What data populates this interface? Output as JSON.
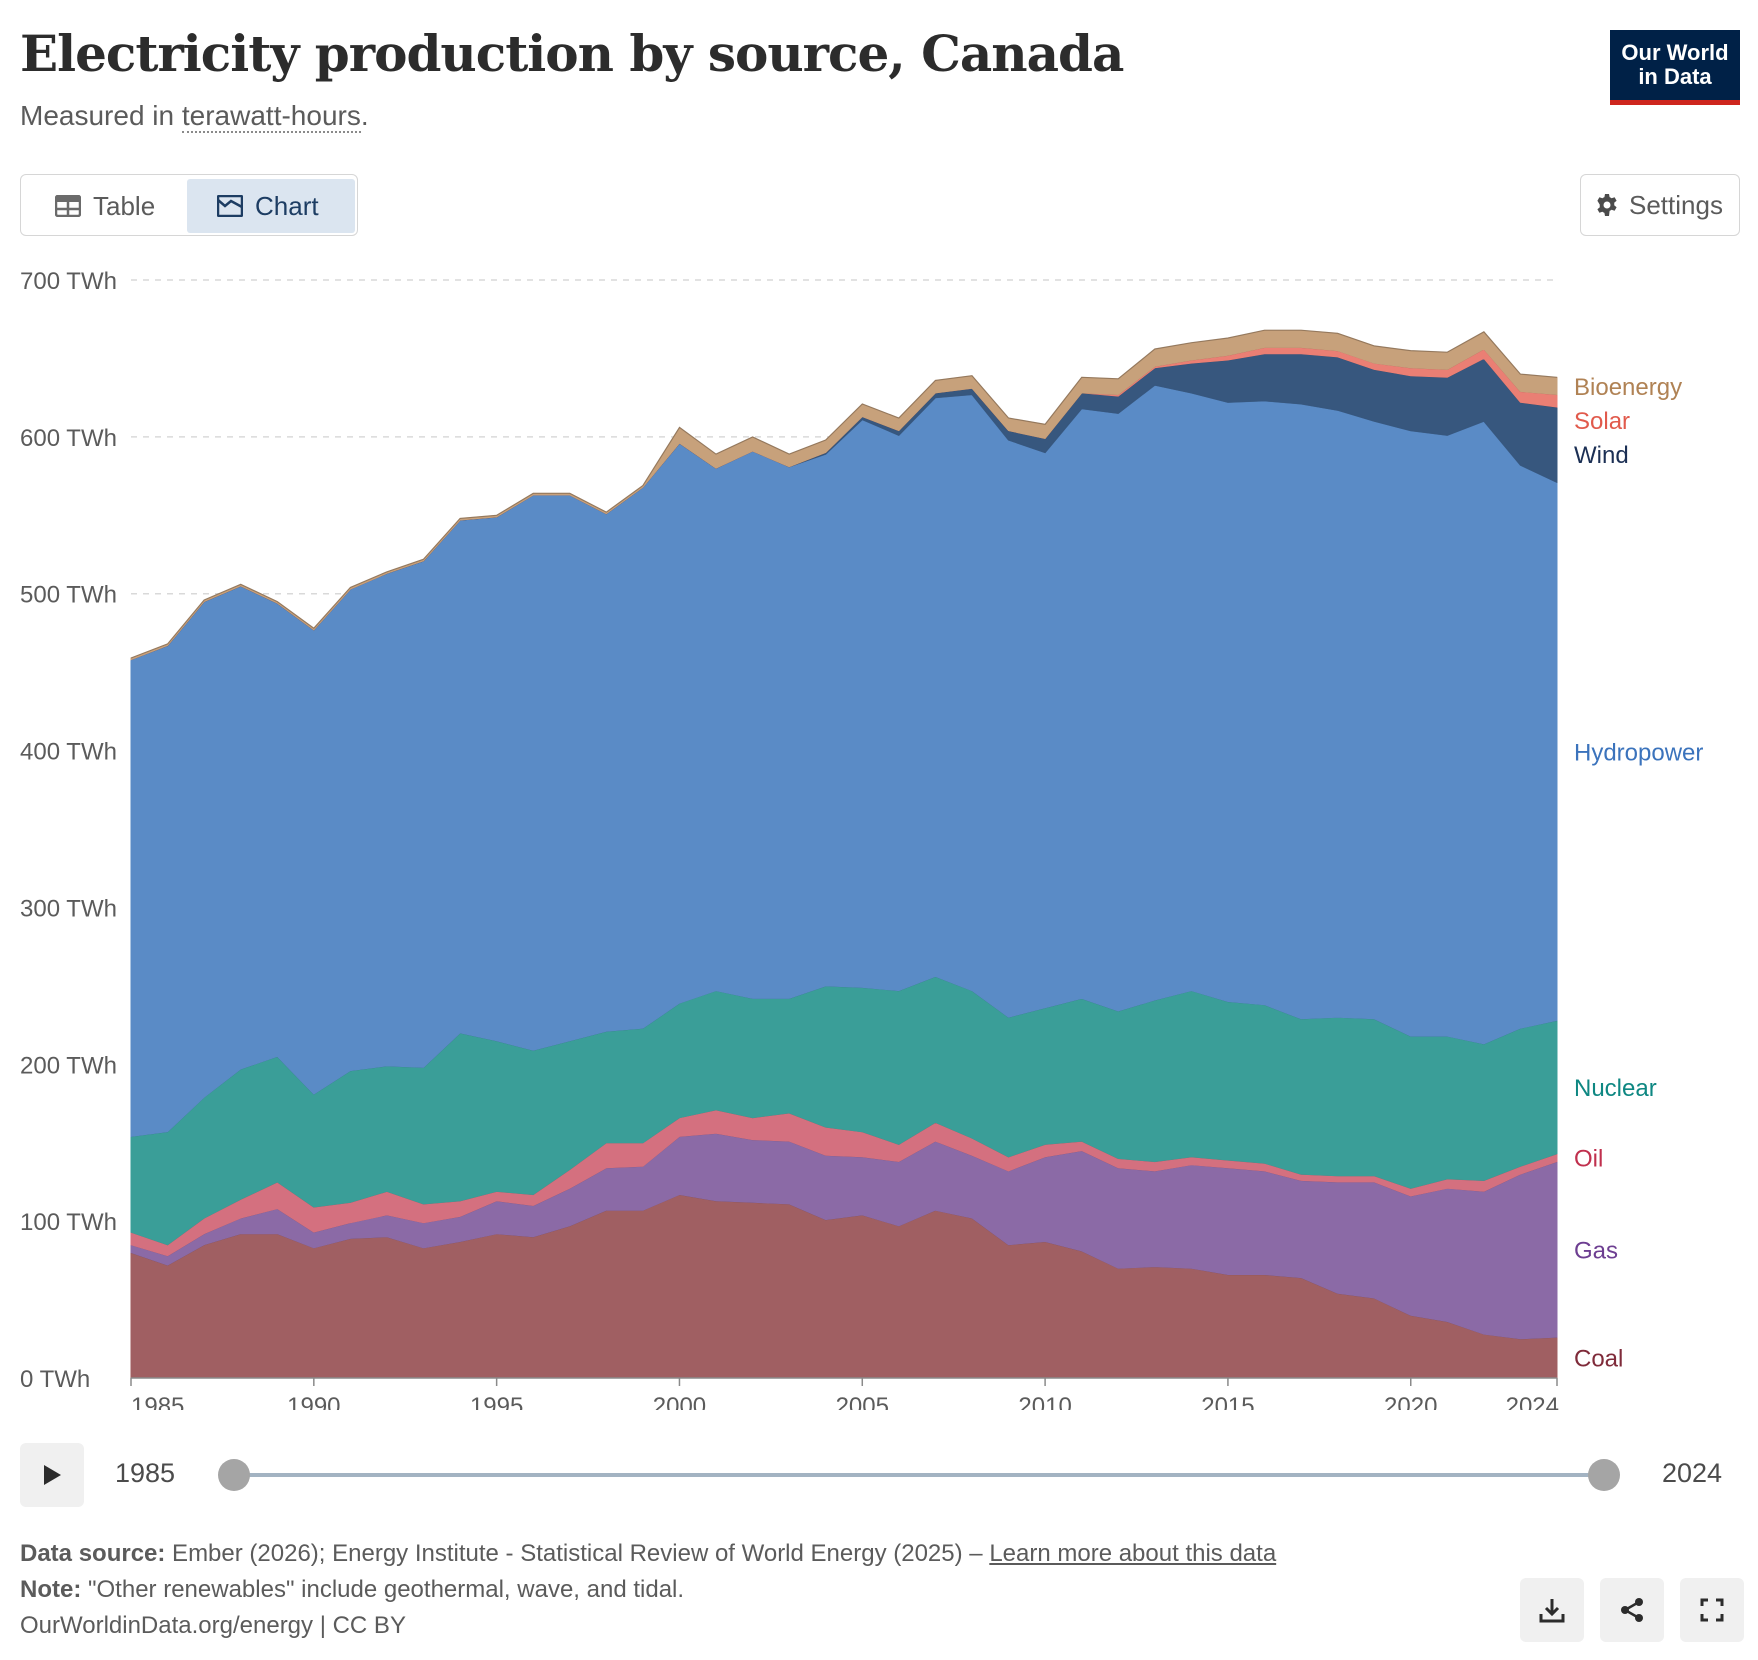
{
  "header": {
    "title": "Electricity production by source, Canada",
    "subtitle_prefix": "Measured in ",
    "subtitle_unit": "terawatt-hours",
    "subtitle_suffix": ".",
    "logo_line1": "Our World",
    "logo_line2": "in Data"
  },
  "tabs": [
    {
      "label": "Table",
      "icon": "table-icon",
      "active": false
    },
    {
      "label": "Chart",
      "icon": "chart-icon",
      "active": true
    }
  ],
  "settings_label": "Settings",
  "timeline": {
    "start": "1985",
    "end": "2024"
  },
  "footer": {
    "source_label": "Data source:",
    "source_text": " Ember (2026); Energy Institute - Statistical Review of World Energy (2025) – ",
    "source_link": "Learn more about this data",
    "note_label": "Note:",
    "note_text": " \"Other renewables\" include geothermal, wave, and tidal.",
    "credit": "OurWorldinData.org/energy | CC BY"
  },
  "colors": {
    "Coal": "#a05f62",
    "Gas": "#8b6aa6",
    "Oil": "#d4707f",
    "Nuclear": "#3a9e98",
    "Hydropower": "#5a8bc6",
    "Wind": "#37577e",
    "Solar": "#ea7f74",
    "Bioenergy": "#c7a17b"
  },
  "label_colors": {
    "Coal": "#7f2b3a",
    "Gas": "#6d3e91",
    "Oil": "#c0304e",
    "Nuclear": "#0e8782",
    "Hydropower": "#3b73bc",
    "Wind": "#1b2f54",
    "Solar": "#e15a4c",
    "Bioenergy": "#b08254"
  },
  "chart_data": {
    "type": "area",
    "stacked": true,
    "y_unit": "TWh",
    "ylim": [
      0,
      700
    ],
    "y_ticks": [
      "0 TWh",
      "100 TWh",
      "200 TWh",
      "300 TWh",
      "400 TWh",
      "500 TWh",
      "600 TWh",
      "700 TWh"
    ],
    "x_ticks": [
      "1985",
      "1990",
      "1995",
      "2000",
      "2005",
      "2010",
      "2015",
      "2020",
      "2024"
    ],
    "grid": "horizontal dashed",
    "legend": "inline-right",
    "x": [
      1985,
      1986,
      1987,
      1988,
      1989,
      1990,
      1991,
      1992,
      1993,
      1994,
      1995,
      1996,
      1997,
      1998,
      1999,
      2000,
      2001,
      2002,
      2003,
      2004,
      2005,
      2006,
      2007,
      2008,
      2009,
      2010,
      2011,
      2012,
      2013,
      2014,
      2015,
      2016,
      2017,
      2018,
      2019,
      2020,
      2021,
      2022,
      2023,
      2024
    ],
    "series": [
      {
        "name": "Coal",
        "values": [
          80,
          72,
          85,
          92,
          92,
          83,
          89,
          90,
          83,
          87,
          92,
          90,
          97,
          107,
          107,
          117,
          113,
          112,
          111,
          101,
          104,
          97,
          107,
          102,
          85,
          87,
          81,
          70,
          71,
          70,
          66,
          66,
          64,
          54,
          51,
          40,
          36,
          28,
          25,
          26
        ]
      },
      {
        "name": "Gas",
        "values": [
          5,
          6,
          7,
          10,
          16,
          10,
          10,
          14,
          16,
          16,
          21,
          20,
          24,
          27,
          28,
          37,
          43,
          40,
          40,
          41,
          37,
          41,
          44,
          40,
          47,
          54,
          64,
          64,
          61,
          66,
          68,
          66,
          62,
          71,
          74,
          76,
          85,
          91,
          105,
          112
        ]
      },
      {
        "name": "Oil",
        "values": [
          8,
          7,
          10,
          12,
          17,
          16,
          13,
          15,
          12,
          10,
          6,
          7,
          12,
          16,
          15,
          12,
          15,
          14,
          18,
          18,
          16,
          11,
          12,
          11,
          9,
          8,
          6,
          6,
          6,
          5,
          5,
          5,
          4,
          4,
          4,
          5,
          6,
          7,
          5,
          5
        ]
      },
      {
        "name": "Nuclear",
        "values": [
          61,
          72,
          77,
          83,
          80,
          72,
          84,
          80,
          87,
          107,
          96,
          92,
          82,
          71,
          73,
          73,
          76,
          76,
          73,
          90,
          92,
          98,
          93,
          94,
          89,
          87,
          91,
          94,
          103,
          106,
          101,
          101,
          99,
          101,
          100,
          97,
          91,
          87,
          88,
          85
        ]
      },
      {
        "name": "Hydropower",
        "values": [
          304,
          310,
          316,
          308,
          289,
          296,
          307,
          314,
          323,
          327,
          334,
          354,
          348,
          330,
          345,
          357,
          333,
          349,
          339,
          339,
          362,
          354,
          369,
          380,
          368,
          354,
          376,
          381,
          392,
          381,
          382,
          385,
          392,
          387,
          381,
          386,
          383,
          397,
          359,
          343
        ]
      },
      {
        "name": "Wind",
        "values": [
          0,
          0,
          0,
          0,
          0,
          0,
          0,
          0,
          0,
          0,
          0,
          0,
          0,
          0,
          0,
          0,
          0,
          0,
          0,
          1,
          2,
          3,
          3,
          4,
          6,
          9,
          10,
          11,
          11,
          19,
          27,
          30,
          32,
          34,
          33,
          35,
          37,
          40,
          40,
          48
        ]
      },
      {
        "name": "Solar",
        "values": [
          0,
          0,
          0,
          0,
          0,
          0,
          0,
          0,
          0,
          0,
          0,
          0,
          0,
          0,
          0,
          0,
          0,
          0,
          0,
          0,
          0,
          0,
          0,
          0,
          0,
          0,
          0,
          1,
          1,
          2,
          3,
          4,
          4,
          4,
          4,
          5,
          5,
          6,
          7,
          8
        ]
      },
      {
        "name": "Bioenergy",
        "values": [
          1,
          1,
          1,
          1,
          1,
          1,
          1,
          1,
          1,
          1,
          1,
          1,
          1,
          1,
          1,
          10,
          9,
          9,
          8,
          8,
          8,
          8,
          8,
          8,
          8,
          9,
          10,
          10,
          11,
          11,
          11,
          11,
          11,
          11,
          11,
          11,
          11,
          11,
          11,
          11
        ]
      }
    ]
  }
}
